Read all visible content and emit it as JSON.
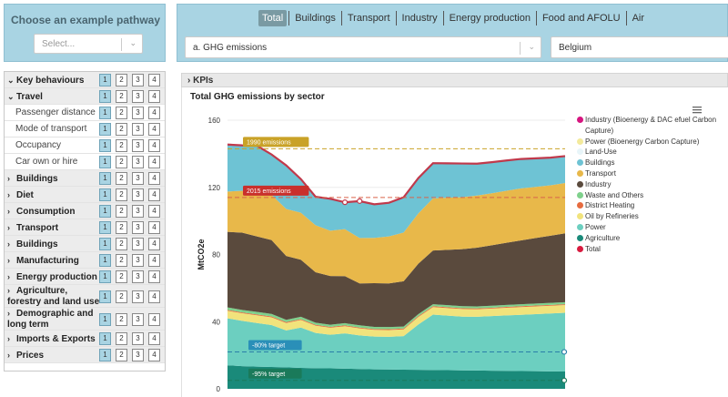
{
  "pathway": {
    "title": "Choose an example pathway",
    "placeholder": "Select..."
  },
  "levers": [
    {
      "label": "Key behaviours",
      "type": "group-open",
      "level": 1
    },
    {
      "label": "Travel",
      "type": "group-open",
      "level": 1
    },
    {
      "label": "Passenger distance",
      "type": "sub",
      "level": 1
    },
    {
      "label": "Mode of transport",
      "type": "sub",
      "level": 1
    },
    {
      "label": "Occupancy",
      "type": "sub",
      "level": 1
    },
    {
      "label": "Car own or hire",
      "type": "sub",
      "level": 1
    },
    {
      "label": "Buildings",
      "type": "group",
      "level": 1
    },
    {
      "label": "Diet",
      "type": "group",
      "level": 1
    },
    {
      "label": "Consumption",
      "type": "group",
      "level": 1
    },
    {
      "label": "Transport",
      "type": "group",
      "level": 1
    },
    {
      "label": "Buildings",
      "type": "group",
      "level": 1
    },
    {
      "label": "Manufacturing",
      "type": "group",
      "level": 1
    },
    {
      "label": "Energy production",
      "type": "group",
      "level": 1
    },
    {
      "label": "Agriculture, forestry and land use (AFOLU)",
      "type": "group",
      "level": 1
    },
    {
      "label": "Demographic and long term",
      "type": "group",
      "level": 1
    },
    {
      "label": "Imports & Exports",
      "type": "group",
      "level": 1
    },
    {
      "label": "Prices",
      "type": "group",
      "level": 1
    }
  ],
  "level_labels": [
    "1",
    "2",
    "3",
    "4"
  ],
  "tabs": [
    "Total",
    "Buildings",
    "Transport",
    "Industry",
    "Energy production",
    "Food and AFOLU",
    "Air"
  ],
  "active_tab": "Total",
  "metric_select": "a. GHG emissions",
  "country_select": "Belgium",
  "kpi_label": "KPIs",
  "chart_data": {
    "type": "area",
    "title": "Total GHG emissions by sector",
    "ylabel": "MtCO2e",
    "ylim": [
      0,
      160
    ],
    "yticks": [
      0,
      40,
      80,
      120,
      160
    ],
    "x": [
      0,
      1,
      2,
      3,
      4,
      5,
      6,
      7,
      8,
      9,
      10,
      11,
      12,
      13,
      14,
      15,
      16,
      17,
      18,
      19,
      20,
      21,
      22,
      23
    ],
    "series": [
      {
        "name": "Agriculture",
        "color": "#1a8a7a",
        "values": [
          14,
          13.5,
          13.2,
          13,
          12.8,
          12.5,
          12.3,
          12.2,
          12,
          11.8,
          11.6,
          11.5,
          11.4,
          11.3,
          11.2,
          11.1,
          11,
          10.9,
          10.8,
          10.7,
          10.6,
          10.5,
          10.4,
          10.3
        ]
      },
      {
        "name": "Power",
        "color": "#6ccfc0",
        "values": [
          28,
          27,
          26,
          25,
          22,
          24,
          21,
          20,
          21,
          20,
          19.5,
          19.5,
          20,
          27,
          33,
          32.5,
          32,
          32,
          32.5,
          33,
          33.5,
          34,
          34.5,
          35
        ]
      },
      {
        "name": "Oil by Refineries",
        "color": "#f1e37c",
        "values": [
          4.5,
          4.5,
          4.6,
          4.6,
          4.4,
          4.5,
          4.3,
          4.2,
          4.3,
          4.2,
          4,
          4,
          4,
          4.5,
          4.5,
          4.5,
          4.5,
          4.5,
          4.5,
          4.6,
          4.6,
          4.6,
          4.6,
          4.6
        ]
      },
      {
        "name": "District Heating",
        "color": "#e66b3f",
        "values": [
          0.5,
          0.5,
          0.5,
          0.5,
          0.5,
          0.5,
          0.5,
          0.5,
          0.5,
          0.5,
          0.5,
          0.5,
          0.5,
          0.5,
          0.5,
          0.5,
          0.5,
          0.5,
          0.5,
          0.5,
          0.5,
          0.5,
          0.5,
          0.5
        ]
      },
      {
        "name": "Waste and Others",
        "color": "#7fd18c",
        "values": [
          1.5,
          1.5,
          1.5,
          1.5,
          1.4,
          1.4,
          1.3,
          1.3,
          1.3,
          1.3,
          1.3,
          1.3,
          1.2,
          1.2,
          1.2,
          1.2,
          1.2,
          1.2,
          1.2,
          1.2,
          1.2,
          1.2,
          1.2,
          1.2
        ]
      },
      {
        "name": "Industry",
        "color": "#5a4a3d",
        "values": [
          45,
          46,
          45,
          44,
          38,
          34,
          30,
          29,
          28,
          25,
          26,
          26,
          27,
          30,
          32,
          33,
          34,
          35,
          36,
          37,
          38,
          39,
          40,
          41
        ]
      },
      {
        "name": "Transport",
        "color": "#e8b84a",
        "values": [
          24,
          25,
          26,
          27,
          28,
          28,
          28,
          27,
          28,
          27,
          27,
          28,
          29,
          30,
          31,
          31,
          31,
          31,
          31,
          31,
          31,
          30.5,
          30,
          30
        ]
      },
      {
        "name": "Buildings",
        "color": "#6ec3d4",
        "values": [
          28,
          27,
          28,
          24,
          26,
          20,
          17,
          19,
          16,
          22,
          20,
          20,
          21,
          21,
          21,
          20.5,
          20,
          19,
          18.5,
          18,
          17.5,
          17,
          16.5,
          16
        ]
      },
      {
        "name": "Land-Use",
        "color": "#e8f5f9",
        "values": [
          0,
          0,
          0,
          0,
          0,
          0,
          0,
          0,
          0,
          0,
          0,
          0,
          0,
          0,
          0,
          0,
          0,
          0,
          0,
          0,
          0,
          0,
          0,
          0
        ]
      },
      {
        "name": "Power (Bioenergy Carbon Capture)",
        "color": "#f3ea9c",
        "values": [
          0,
          0,
          0,
          0,
          0,
          0,
          0,
          0,
          0,
          0,
          0,
          0,
          0,
          0,
          0,
          0,
          0,
          0,
          0,
          0,
          0,
          0,
          0,
          0
        ]
      },
      {
        "name": "Industry (Bioenergy & DAC efuel Carbon Capture)",
        "color": "#d6157f",
        "values": [
          0,
          0,
          0,
          0,
          0,
          0,
          0,
          0,
          0,
          0,
          0,
          0,
          0,
          0,
          0,
          0,
          0,
          0,
          0,
          0,
          0,
          0,
          0,
          0
        ]
      }
    ],
    "total": {
      "name": "Total",
      "color": "#c0394b"
    },
    "reference_lines": [
      {
        "label": "1990 emissions",
        "value": 143,
        "color": "#c9a227",
        "label_bg": "#c9a227"
      },
      {
        "label": "2015 emissions",
        "value": 114,
        "color": "#d9634a",
        "label_bg": "#c9302c"
      },
      {
        "label": "-80% target",
        "value": 22,
        "color": "#2a7fa8",
        "label_bg": "#2a8fb8"
      },
      {
        "label": "-95% target",
        "value": 5,
        "color": "#1a7a5a",
        "label_bg": "#1a7a5a"
      }
    ],
    "legend": [
      {
        "label": "Industry (Bioenergy & DAC efuel Carbon Capture)",
        "color": "#d6157f"
      },
      {
        "label": "Power (Bioenergy Carbon Capture)",
        "color": "#f3ea9c"
      },
      {
        "label": "Land-Use",
        "color": "#e8f5f9"
      },
      {
        "label": "Buildings",
        "color": "#6ec3d4"
      },
      {
        "label": "Transport",
        "color": "#e8b84a"
      },
      {
        "label": "Industry",
        "color": "#5a4a3d"
      },
      {
        "label": "Waste and Others",
        "color": "#7fd18c"
      },
      {
        "label": "District Heating",
        "color": "#e66b3f"
      },
      {
        "label": "Oil by Refineries",
        "color": "#f1e37c"
      },
      {
        "label": "Power",
        "color": "#6ccfc0"
      },
      {
        "label": "Agriculture",
        "color": "#1a8a7a"
      },
      {
        "label": "Total",
        "color": "#d81b3f"
      }
    ]
  }
}
